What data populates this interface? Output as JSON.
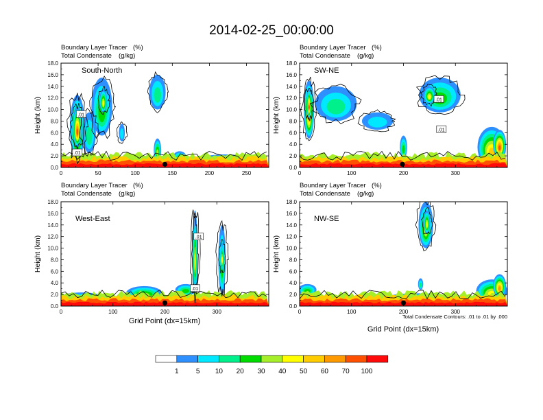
{
  "title": "2014-02-25_00:00:00",
  "field_label": "Boundary Layer Tracer",
  "field_units": "(%)",
  "contour_label": "Total Condensate",
  "contour_units": "(g/kg)",
  "xlabel": "Grid Point (dx=15km)",
  "contour_info": "Total Condensate Contours: .01 to .01 by .000",
  "colorbar": {
    "levels": [
      "1",
      "5",
      "10",
      "20",
      "30",
      "40",
      "50",
      "60",
      "70",
      "100"
    ],
    "colors": [
      "#ffffff",
      "#2e8fff",
      "#00e8ff",
      "#00f08c",
      "#00dc00",
      "#a6ee2a",
      "#ffff00",
      "#ffcc00",
      "#ff9900",
      "#ff5000",
      "#ff0a0a"
    ]
  },
  "chart_data": [
    {
      "type": "heatmap",
      "name": "South-North",
      "ylabel": "Height (km)",
      "ylim": [
        0,
        18
      ],
      "xlim": [
        0,
        280
      ],
      "yticks": [
        "0.0",
        "2.0",
        "4.0",
        "6.0",
        "8.0",
        "10.0",
        "12.0",
        "14.0",
        "16.0",
        "18.0"
      ],
      "xticks": [
        0,
        50,
        100,
        150,
        200,
        250
      ],
      "marker_x": 140,
      "contour_labels": [
        {
          "x": 27,
          "y": 9.2,
          "text": ".01"
        },
        {
          "x": 22,
          "y": 2.6,
          "text": ".01"
        }
      ],
      "features": [
        {
          "x": 22,
          "y": 7,
          "w": 20,
          "h": 11,
          "v": 50
        },
        {
          "x": 22,
          "y": 7,
          "w": 12,
          "h": 7,
          "v": 70
        },
        {
          "x": 55,
          "y": 10.5,
          "w": 28,
          "h": 10,
          "v": 25
        },
        {
          "x": 57,
          "y": 11.5,
          "w": 10,
          "h": 4,
          "v": 45
        },
        {
          "x": 38,
          "y": 6,
          "w": 18,
          "h": 7,
          "v": 15
        },
        {
          "x": 130,
          "y": 3,
          "w": 10,
          "h": 4,
          "v": 35
        },
        {
          "x": 160,
          "y": 1.8,
          "w": 18,
          "h": 2,
          "v": 20
        },
        {
          "x": 220,
          "y": 1.5,
          "w": 60,
          "h": 1.5,
          "v": 12
        },
        {
          "x": 82,
          "y": 6,
          "w": 8,
          "h": 3,
          "v": 7
        },
        {
          "x": 130,
          "y": 13,
          "w": 22,
          "h": 6,
          "v": 18
        }
      ]
    },
    {
      "type": "heatmap",
      "name": "SW-NE",
      "ylabel": "Height (km)",
      "ylim": [
        0,
        18
      ],
      "xlim": [
        0,
        400
      ],
      "yticks": [
        "0.0",
        "2.0",
        "4.0",
        "6.0",
        "8.0",
        "10.0",
        "12.0",
        "14.0",
        "16.0",
        "18.0"
      ],
      "xticks": [
        0,
        100,
        200,
        300
      ],
      "marker_x": 198,
      "contour_labels": [
        {
          "x": 268,
          "y": 11.8,
          "text": ".01"
        },
        {
          "x": 273,
          "y": 6.6,
          "text": ".01"
        }
      ],
      "features": [
        {
          "x": 18,
          "y": 10,
          "w": 20,
          "h": 10,
          "v": 50
        },
        {
          "x": 18,
          "y": 11,
          "w": 9,
          "h": 5,
          "v": 70
        },
        {
          "x": 70,
          "y": 11,
          "w": 80,
          "h": 6,
          "v": 18
        },
        {
          "x": 270,
          "y": 12.5,
          "w": 80,
          "h": 6,
          "v": 25
        },
        {
          "x": 250,
          "y": 12.5,
          "w": 22,
          "h": 3,
          "v": 45
        },
        {
          "x": 370,
          "y": 3.5,
          "w": 55,
          "h": 7,
          "v": 50
        },
        {
          "x": 385,
          "y": 4,
          "w": 25,
          "h": 5,
          "v": 70
        },
        {
          "x": 150,
          "y": 8,
          "w": 60,
          "h": 3,
          "v": 8
        },
        {
          "x": 200,
          "y": 3.5,
          "w": 14,
          "h": 4,
          "v": 20
        }
      ]
    },
    {
      "type": "heatmap",
      "name": "West-East",
      "ylabel": "Height (km)",
      "ylim": [
        0,
        18
      ],
      "xlim": [
        0,
        400
      ],
      "yticks": [
        "0.0",
        "2.0",
        "4.0",
        "6.0",
        "8.0",
        "10.0",
        "12.0",
        "14.0",
        "16.0",
        "18.0"
      ],
      "xticks": [
        0,
        100,
        200,
        300
      ],
      "marker_x": 200,
      "contour_labels": [
        {
          "x": 265,
          "y": 12,
          "text": ".01"
        },
        {
          "x": 258,
          "y": 3.1,
          "text": ".01"
        }
      ],
      "features": [
        {
          "x": 258,
          "y": 9,
          "w": 10,
          "h": 15,
          "v": 35
        },
        {
          "x": 258,
          "y": 9,
          "w": 4,
          "h": 12,
          "v": 45
        },
        {
          "x": 310,
          "y": 8,
          "w": 14,
          "h": 12,
          "v": 25
        },
        {
          "x": 310,
          "y": 8.5,
          "w": 5,
          "h": 5,
          "v": 40
        },
        {
          "x": 160,
          "y": 2.2,
          "w": 70,
          "h": 2.5,
          "v": 30
        },
        {
          "x": 240,
          "y": 2.8,
          "w": 40,
          "h": 2,
          "v": 20
        },
        {
          "x": 40,
          "y": 1.6,
          "w": 80,
          "h": 1.5,
          "v": 14
        }
      ]
    },
    {
      "type": "heatmap",
      "name": "NW-SE",
      "ylabel": "Height (km)",
      "ylim": [
        0,
        18
      ],
      "xlim": [
        0,
        400
      ],
      "yticks": [
        "0.0",
        "2.0",
        "4.0",
        "6.0",
        "8.0",
        "10.0",
        "12.0",
        "14.0",
        "16.0",
        "18.0"
      ],
      "xticks": [
        0,
        100,
        200,
        300
      ],
      "marker_x": 200,
      "contour_labels": [],
      "features": [
        {
          "x": 243,
          "y": 14,
          "w": 28,
          "h": 8,
          "v": 30
        },
        {
          "x": 245,
          "y": 14.5,
          "w": 12,
          "h": 4,
          "v": 45
        },
        {
          "x": 370,
          "y": 2.6,
          "w": 60,
          "h": 4,
          "v": 40
        },
        {
          "x": 385,
          "y": 3.5,
          "w": 25,
          "h": 4,
          "v": 65
        },
        {
          "x": 15,
          "y": 2.8,
          "w": 35,
          "h": 2,
          "v": 25
        },
        {
          "x": 230,
          "y": 1.6,
          "w": 120,
          "h": 1.2,
          "v": 12
        },
        {
          "x": 233,
          "y": 3.8,
          "w": 10,
          "h": 2,
          "v": 10
        }
      ]
    }
  ]
}
